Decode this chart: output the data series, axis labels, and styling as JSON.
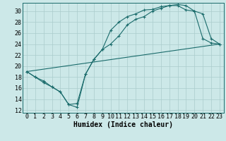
{
  "xlabel": "Humidex (Indice chaleur)",
  "background_color": "#cce8e8",
  "grid_color": "#aacccc",
  "line_color": "#1a6b6b",
  "xlim": [
    -0.5,
    23.5
  ],
  "ylim": [
    11.5,
    31.5
  ],
  "xticks": [
    0,
    1,
    2,
    3,
    4,
    5,
    6,
    7,
    8,
    9,
    10,
    11,
    12,
    13,
    14,
    15,
    16,
    17,
    18,
    19,
    20,
    21,
    22,
    23
  ],
  "yticks": [
    12,
    14,
    16,
    18,
    20,
    22,
    24,
    26,
    28,
    30
  ],
  "line1_x": [
    0,
    1,
    2,
    3,
    4,
    5,
    6,
    7,
    8,
    9,
    10,
    11,
    12,
    13,
    14,
    15,
    16,
    17,
    18,
    19,
    20,
    21,
    22,
    23
  ],
  "line1_y": [
    19.0,
    18.0,
    17.0,
    16.2,
    15.3,
    13.0,
    13.2,
    18.5,
    21.2,
    23.0,
    24.0,
    25.5,
    27.5,
    28.5,
    29.0,
    30.0,
    30.5,
    31.0,
    31.0,
    30.2,
    30.0,
    25.0,
    24.2,
    24.0
  ],
  "line2_x": [
    0,
    1,
    2,
    3,
    4,
    5,
    6,
    7,
    8,
    9,
    10,
    11,
    12,
    13,
    14,
    15,
    16,
    17,
    18,
    19,
    20,
    21,
    22,
    23
  ],
  "line2_y": [
    19.0,
    18.0,
    17.3,
    16.2,
    15.3,
    13.0,
    12.5,
    18.5,
    21.2,
    23.0,
    26.5,
    28.0,
    29.0,
    29.5,
    30.2,
    30.3,
    30.8,
    31.0,
    31.2,
    31.0,
    30.0,
    29.5,
    25.0,
    24.0
  ],
  "line3_x": [
    0,
    23
  ],
  "line3_y": [
    19.0,
    24.0
  ],
  "xlabel_fontsize": 7,
  "tick_fontsize": 6
}
